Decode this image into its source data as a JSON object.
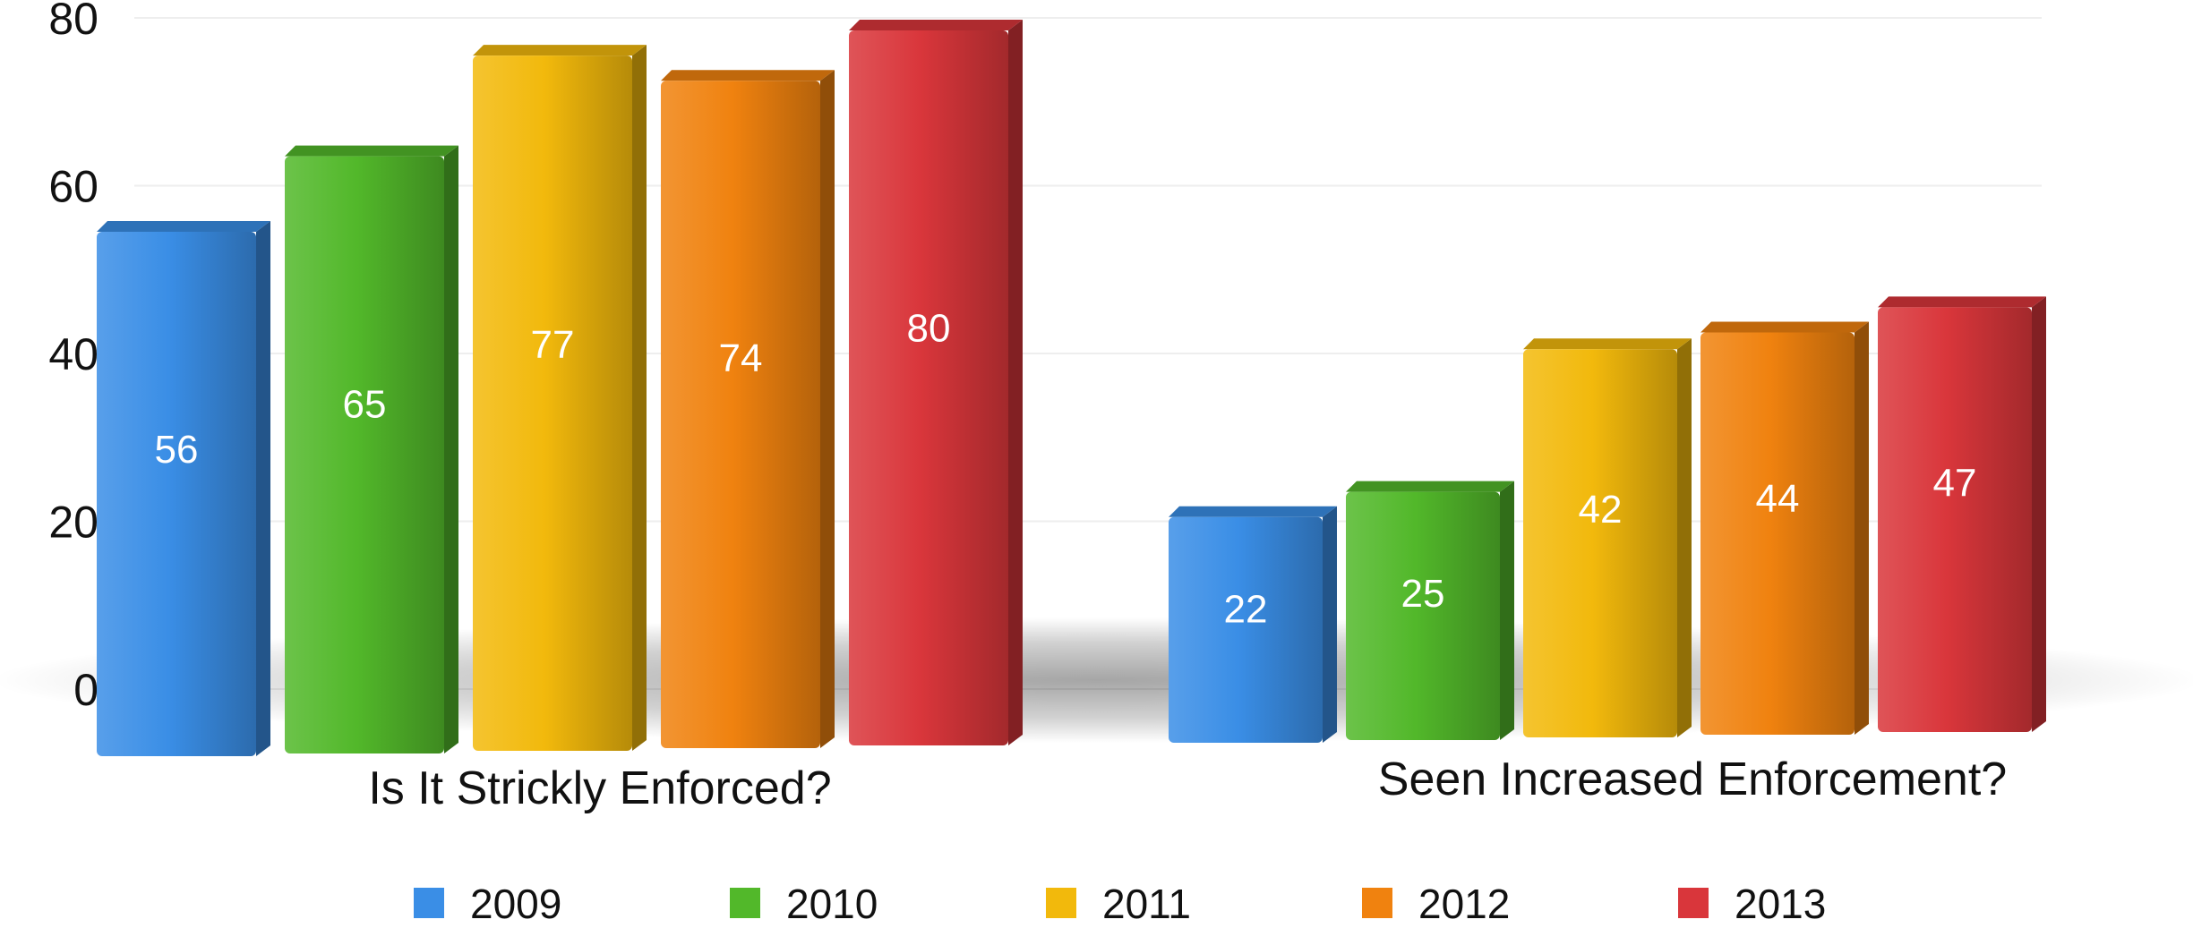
{
  "chart_data": {
    "type": "bar",
    "categories": [
      "Is It Strickly Enforced?",
      "Seen Increased Enforcement?"
    ],
    "series": [
      {
        "name": "2009",
        "values": [
          56,
          22
        ],
        "color": "#3a8ee6"
      },
      {
        "name": "2010",
        "values": [
          65,
          25
        ],
        "color": "#52b82a"
      },
      {
        "name": "2011",
        "values": [
          77,
          42
        ],
        "color": "#f2b90c"
      },
      {
        "name": "2012",
        "values": [
          74,
          44
        ],
        "color": "#f0820f"
      },
      {
        "name": "2013",
        "values": [
          80,
          47
        ],
        "color": "#d9363b"
      }
    ],
    "yticks": [
      "0",
      "20",
      "40",
      "60",
      "80"
    ],
    "ylim": [
      0,
      80
    ],
    "grid": true,
    "legend": "bottom",
    "title": "",
    "xlabel": "",
    "ylabel": ""
  }
}
